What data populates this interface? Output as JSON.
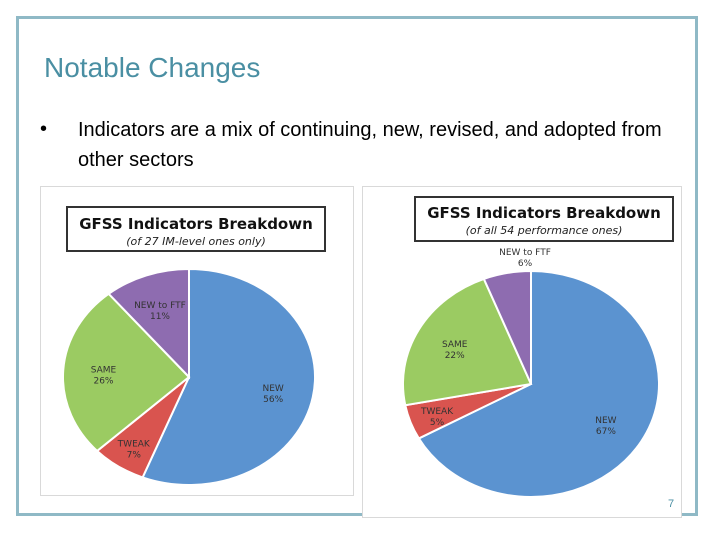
{
  "slide": {
    "title": "Notable Changes",
    "bullet": "•",
    "bullet_text": "Indicators are a mix of continuing, new, revised, and adopted from other sectors",
    "page_number": "7"
  },
  "colors": {
    "NEW": "#5b93d0",
    "TWEAK": "#d9544f",
    "SAME": "#9bcb62",
    "NEW to FTF": "#8e6cb0",
    "title_accent": "#4a8fa3"
  },
  "chart_data": [
    {
      "type": "pie",
      "title": "GFSS Indicators Breakdown",
      "subtitle": "(of 27 IM-level ones only)",
      "slices": [
        {
          "label": "NEW",
          "value": 56,
          "pct_label": "56%"
        },
        {
          "label": "TWEAK",
          "value": 7,
          "pct_label": "7%"
        },
        {
          "label": "SAME",
          "value": 26,
          "pct_label": "26%"
        },
        {
          "label": "NEW to FTF",
          "value": 11,
          "pct_label": "11%"
        }
      ]
    },
    {
      "type": "pie",
      "title": "GFSS Indicators Breakdown",
      "subtitle": "(of all 54 performance ones)",
      "slices": [
        {
          "label": "NEW",
          "value": 67,
          "pct_label": "67%"
        },
        {
          "label": "TWEAK",
          "value": 5,
          "pct_label": "5%"
        },
        {
          "label": "SAME",
          "value": 22,
          "pct_label": "22%"
        },
        {
          "label": "NEW to FTF",
          "value": 6,
          "pct_label": "6%"
        }
      ]
    }
  ]
}
